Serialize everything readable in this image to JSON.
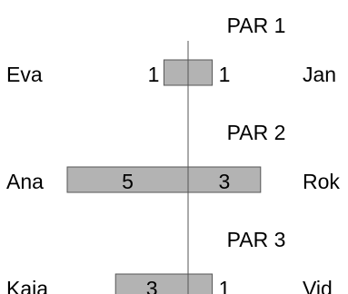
{
  "chart_data": {
    "type": "bar",
    "orientation": "horizontal-diverging",
    "groups": [
      {
        "title": "PAR 1",
        "left_name": "Eva",
        "left_value": 1,
        "right_name": "Jan",
        "right_value": 1
      },
      {
        "title": "PAR 2",
        "left_name": "Ana",
        "left_value": 5,
        "right_name": "Rok",
        "right_value": 3
      },
      {
        "title": "PAR 3",
        "left_name": "Kaja",
        "left_value": 3,
        "right_name": "Vid",
        "right_value": 1
      }
    ],
    "bar_color": "#b3b3b3",
    "bar_border_color": "#555555",
    "axis_color": "#555555",
    "text_color": "#000000",
    "legend": "none",
    "grid": false
  }
}
